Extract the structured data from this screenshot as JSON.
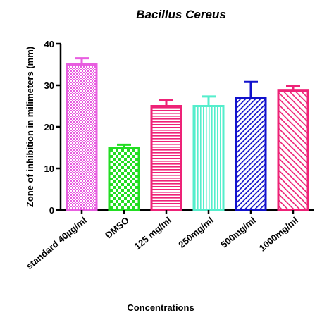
{
  "chart_data": {
    "type": "bar",
    "title": "Bacillus Cereus",
    "xlabel": "Concentrations",
    "ylabel": "Zone of inhibition in milimeters (mm)",
    "ylim": [
      0,
      40
    ],
    "yticks": [
      "0",
      "10",
      "20",
      "30",
      "40"
    ],
    "grid": false,
    "categories": [
      "standard 40µg/ml",
      "DMSO",
      "125 mg/ml",
      "250mg/ml",
      "500mg/ml",
      "1000mg/ml"
    ],
    "values": [
      35,
      15,
      25,
      25,
      27,
      28.7
    ],
    "errors": [
      1.5,
      0.7,
      1.5,
      2.3,
      3.8,
      1.2
    ],
    "colors": [
      "#e85ee0",
      "#22dd22",
      "#ee2277",
      "#55eecc",
      "#1111cc",
      "#ee2277"
    ],
    "patterns": [
      "dots",
      "checker",
      "hlines",
      "vlines",
      "diag",
      "diag-dense"
    ]
  }
}
